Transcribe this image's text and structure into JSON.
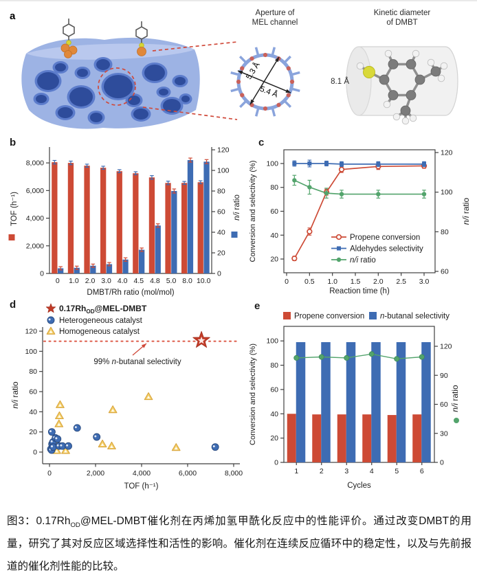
{
  "panels": {
    "a": {
      "label": "a",
      "aperture_title": "Aperture of\nMEL channel",
      "kinetic_title": "Kinetic diameter\nof DMBT",
      "d1": "5.3 Å",
      "d2": "5.4 Å",
      "kinetic_diameter": "8.1 Å"
    },
    "b": {
      "label": "b"
    },
    "c": {
      "label": "c"
    },
    "d": {
      "label": "d"
    },
    "e": {
      "label": "e"
    }
  },
  "caption": {
    "part1": "图3：0.17Rh",
    "sub": "OD",
    "part2": "@MEL-DMBT催化剂在丙烯加氢甲酰化反应中的性能评价。通过改变DMBT的用量，研究了其对反应区域选择性和活性的影响。催化剂在连续反应循环中的稳定性，以及与先前报道的催化剂性能的比较。"
  },
  "colors": {
    "red": "#cd4a35",
    "blue": "#3e6cb3",
    "green": "#53a46c",
    "yellow": "#f4d06a",
    "yellow_edge": "#d8a43c",
    "star_red": "#c23b28",
    "refline": "#df6352",
    "axis": "#3f3f3f",
    "structure_light": "#9db3e4",
    "structure_mid": "#5c7ccb",
    "structure_dark": "#2e4c9b",
    "orange": "#e0883a",
    "dashed_red": "#d0493a",
    "ring_blue": "#8aa4dc",
    "ring_dot": "#c9615a",
    "sulfur": "#d9d93a",
    "carbon": "#7c7c7c",
    "hydrogen": "#f2f2f2",
    "cylinder": "#f1f1f1"
  },
  "chart_data": [
    {
      "id": "b",
      "type": "bar",
      "categories": [
        "0",
        "1.0",
        "2.0",
        "3.0",
        "4.0",
        "4.5",
        "4.8",
        "5.0",
        "8.0",
        "10.0"
      ],
      "series": [
        {
          "name": "TOF",
          "axis": "left",
          "color": "#cd4a35",
          "values": [
            8050,
            8000,
            7800,
            7650,
            7400,
            7250,
            6950,
            6550,
            6550,
            6600
          ],
          "errors": [
            130,
            130,
            110,
            110,
            110,
            110,
            130,
            130,
            110,
            110
          ]
        },
        {
          "name": "n/i ratio",
          "axis": "right",
          "color": "#3e6cb3",
          "values": [
            5,
            5.5,
            7.5,
            9,
            13.5,
            23,
            46.5,
            80,
            110,
            108.5
          ],
          "errors": [
            1.6,
            1.6,
            1.6,
            1.6,
            1.7,
            1.7,
            1.7,
            2,
            2,
            2
          ]
        }
      ],
      "xlabel": "DMBT/Rh ratio (mol/mol)",
      "ylabel_left": "TOF (h⁻¹)",
      "ylabel_right": [
        {
          "t": "n/i",
          "i": true
        },
        {
          "t": " ratio"
        }
      ],
      "ylim_left": [
        0,
        9150
      ],
      "yticks_left": [
        0,
        2000,
        4000,
        6000,
        8000
      ],
      "ylim_right": [
        0,
        122.7
      ],
      "yticks_right": [
        0,
        20,
        40,
        60,
        80,
        100,
        120
      ]
    },
    {
      "id": "c",
      "type": "line",
      "x": [
        0.17,
        0.5,
        0.87,
        1.2,
        2.0,
        3.0
      ],
      "series": [
        {
          "name": "Propene conversion",
          "axis": "left",
          "color": "#cd4a35",
          "marker": "open-circle",
          "values": [
            20.5,
            43,
            76,
            95,
            97.5,
            98
          ],
          "errors": [
            1.8,
            3,
            2.5,
            2.5,
            2.5,
            2
          ]
        },
        {
          "name": "Aldehydes selectivity",
          "axis": "left",
          "color": "#3e6cb3",
          "marker": "square",
          "values": [
            100,
            100,
            100,
            99.5,
            99.5,
            99.5
          ],
          "errors": [
            2.2,
            2.8,
            2,
            2,
            2,
            2
          ]
        },
        {
          "name": [
            {
              "t": "n/i",
              "i": true
            },
            {
              "t": " ratio"
            }
          ],
          "axis": "right",
          "color": "#53a46c",
          "marker": "circle",
          "values": [
            106,
            102.5,
            99.5,
            99,
            99,
            99
          ],
          "errors": [
            2.5,
            3.5,
            2.5,
            2,
            2,
            2
          ]
        }
      ],
      "xlabel": "Reaction time (h)",
      "ylabel_left": "Conversion and selectivity (%)",
      "ylabel_right": [
        {
          "t": "n/i",
          "i": true
        },
        {
          "t": " ratio"
        }
      ],
      "xlim": [
        -0.06,
        3.24
      ],
      "xticks": [
        0,
        0.5,
        1,
        1.5,
        2,
        2.5,
        3
      ],
      "xtick_labels": [
        "0",
        "0.5",
        "1.0",
        "1.5",
        "2.0",
        "2.5",
        "3.0"
      ],
      "ylim_left": [
        8.5,
        111.5
      ],
      "yticks_left": [
        20,
        40,
        60,
        80,
        100
      ],
      "ylim_right": [
        59.3,
        121.4
      ],
      "yticks_right": [
        60,
        80,
        100,
        120
      ]
    },
    {
      "id": "d",
      "type": "scatter",
      "series": [
        {
          "name": [
            {
              "t": "0.17Rh"
            },
            {
              "t": "OD",
              "sub": true
            },
            {
              "t": "@MEL-DMBT"
            }
          ],
          "marker": "star",
          "color": "#c23b28",
          "points": [
            [
              6600,
              111
            ]
          ]
        },
        {
          "name": "Heterogeneous catalyst",
          "marker": "circle",
          "color": "#3e6cb3",
          "points": [
            [
              60,
              3
            ],
            [
              90,
              2
            ],
            [
              100,
              20
            ],
            [
              110,
              8
            ],
            [
              150,
              10
            ],
            [
              160,
              5
            ],
            [
              260,
              14
            ],
            [
              350,
              13
            ],
            [
              420,
              6
            ],
            [
              560,
              6
            ],
            [
              820,
              6
            ],
            [
              1200,
              24
            ],
            [
              2050,
              15
            ],
            [
              7200,
              5
            ]
          ]
        },
        {
          "name": "Homogeneous catalyst",
          "marker": "triangle",
          "color": "#f4d06a",
          "points": [
            [
              200,
              12
            ],
            [
              260,
              11
            ],
            [
              320,
              8
            ],
            [
              230,
              3
            ],
            [
              310,
              1.5
            ],
            [
              460,
              47
            ],
            [
              430,
              36
            ],
            [
              410,
              28
            ],
            [
              700,
              1.5
            ],
            [
              2300,
              8
            ],
            [
              2700,
              6
            ],
            [
              2750,
              42
            ],
            [
              4300,
              55
            ],
            [
              5500,
              4.5
            ]
          ]
        }
      ],
      "refline": {
        "y": 110,
        "label": [
          {
            "t": "99% "
          },
          {
            "t": "n",
            "i": true
          },
          {
            "t": "-butanal selectivity"
          }
        ]
      },
      "xlabel": "TOF (h⁻¹)",
      "ylabel": [
        {
          "t": "n/i",
          "i": true
        },
        {
          "t": " ratio"
        }
      ],
      "xlim": [
        -300,
        8270
      ],
      "xticks": [
        0,
        2000,
        4000,
        6000,
        8000
      ],
      "ylim": [
        -11.6,
        124.1
      ],
      "yticks": [
        0,
        20,
        40,
        60,
        80,
        100,
        120
      ]
    },
    {
      "id": "e",
      "type": "bar+line",
      "categories": [
        "1",
        "2",
        "3",
        "4",
        "5",
        "6"
      ],
      "series": [
        {
          "name": "Propene conversion",
          "kind": "bar",
          "axis": "left",
          "color": "#cd4a35",
          "values": [
            40,
            39.5,
            39.5,
            39.5,
            39,
            39.5
          ]
        },
        {
          "name": [
            {
              "t": "n",
              "i": true
            },
            {
              "t": "-butanal selectivity"
            }
          ],
          "kind": "bar",
          "axis": "left",
          "color": "#3e6cb3",
          "values": [
            99,
            99,
            99,
            99,
            99,
            99
          ]
        },
        {
          "name": [
            {
              "t": "n/i",
              "i": true
            },
            {
              "t": " ratio"
            }
          ],
          "kind": "line",
          "axis": "right",
          "color": "#53a46c",
          "values": [
            108,
            109,
            108,
            112,
            107,
            109
          ]
        }
      ],
      "xlabel": "Cycles",
      "ylabel_left": "Conversion and selectivity (%)",
      "ylabel_right": [
        {
          "t": "n/i",
          "i": true
        },
        {
          "t": " ratio"
        }
      ],
      "ylim_left": [
        0,
        112
      ],
      "yticks_left": [
        0,
        20,
        40,
        60,
        80,
        100
      ],
      "ylim_right": [
        0,
        140.6
      ],
      "yticks_right": [
        0,
        30,
        60,
        90,
        120
      ]
    }
  ]
}
